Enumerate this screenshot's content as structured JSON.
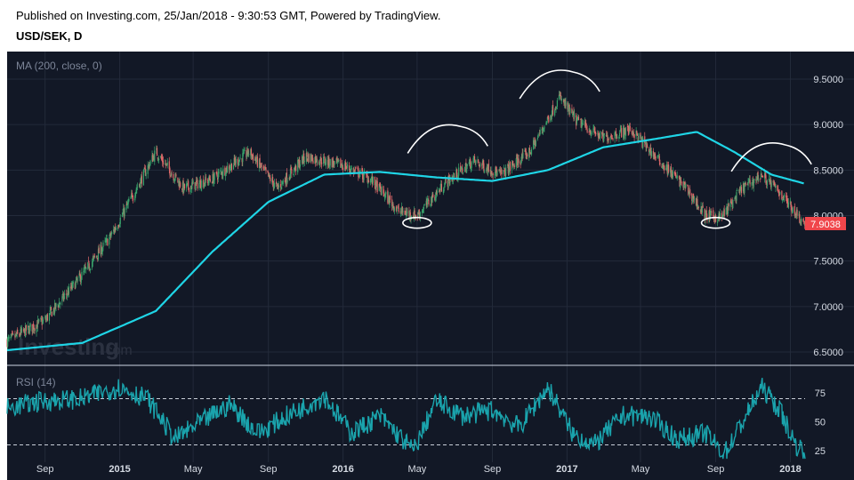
{
  "header": {
    "published": "Published on Investing.com, 25/Jan/2018 - 9:30:53 GMT, Powered by TradingView.",
    "symbol": "USD/SEK, D"
  },
  "watermark": {
    "brand": "Investing",
    "suffix": ".com"
  },
  "colors": {
    "background": "#121826",
    "grid": "#232a3a",
    "up_candle": "#39a36b",
    "down_candle": "#e06a6a",
    "ma_line": "#1fd5e6",
    "rsi_line": "#1aa3ac",
    "price_tag": "#f0464b",
    "annotation": "#ffffff"
  },
  "chart_data": [
    {
      "type": "candlestick",
      "title": "MA (200, close, 0)",
      "ylim": [
        6.4,
        9.7
      ],
      "y_ticks": [
        "9.5000",
        "9.0000",
        "8.5000",
        "8.0000",
        "7.5000",
        "7.0000",
        "6.5000"
      ],
      "x_ticks": [
        "Sep",
        "2015",
        "May",
        "Sep",
        "2016",
        "May",
        "Sep",
        "2017",
        "May",
        "Sep",
        "2018"
      ],
      "last_price": "7.9038",
      "close_path": {
        "x": [
          "2014-07-01",
          "2014-09-01",
          "2014-11-01",
          "2014-12-15",
          "2015-01-01",
          "2015-03-01",
          "2015-04-15",
          "2015-06-01",
          "2015-08-01",
          "2015-09-15",
          "2015-11-01",
          "2016-01-01",
          "2016-02-15",
          "2016-04-01",
          "2016-05-01",
          "2016-06-15",
          "2016-08-01",
          "2016-09-15",
          "2016-11-01",
          "2016-12-20",
          "2017-01-15",
          "2017-03-01",
          "2017-04-15",
          "2017-06-01",
          "2017-07-15",
          "2017-08-15",
          "2017-09-10",
          "2017-10-15",
          "2017-11-15",
          "2017-12-15",
          "2018-01-25"
        ],
        "y": [
          6.62,
          6.85,
          7.35,
          7.75,
          7.95,
          8.7,
          8.3,
          8.4,
          8.7,
          8.3,
          8.65,
          8.55,
          8.4,
          8.05,
          8.0,
          8.35,
          8.6,
          8.45,
          8.7,
          9.3,
          9.05,
          8.85,
          8.95,
          8.6,
          8.3,
          8.0,
          7.98,
          8.3,
          8.45,
          8.25,
          7.9038
        ]
      },
      "ma_200": {
        "x": [
          "2014-07-01",
          "2014-11-01",
          "2015-03-01",
          "2015-06-01",
          "2015-09-01",
          "2015-12-01",
          "2016-03-01",
          "2016-06-01",
          "2016-09-01",
          "2016-12-01",
          "2017-03-01",
          "2017-06-01",
          "2017-08-01",
          "2017-10-01",
          "2017-12-01",
          "2018-01-25"
        ],
        "y": [
          6.52,
          6.6,
          6.95,
          7.6,
          8.15,
          8.45,
          8.48,
          8.42,
          8.38,
          8.5,
          8.75,
          8.85,
          8.92,
          8.7,
          8.45,
          8.35
        ]
      }
    },
    {
      "type": "line",
      "title": "RSI (14)",
      "ylim": [
        18,
        92
      ],
      "y_ticks": [
        "75",
        "50",
        "25"
      ],
      "levels": [
        70,
        30
      ],
      "rsi": {
        "x": [
          "2014-07-01",
          "2014-09-01",
          "2014-11-01",
          "2015-01-01",
          "2015-02-15",
          "2015-04-01",
          "2015-05-15",
          "2015-07-01",
          "2015-08-15",
          "2015-10-01",
          "2015-12-01",
          "2016-01-15",
          "2016-03-01",
          "2016-04-25",
          "2016-06-01",
          "2016-07-15",
          "2016-09-01",
          "2016-10-15",
          "2016-12-01",
          "2017-01-10",
          "2017-02-15",
          "2017-04-01",
          "2017-05-15",
          "2017-07-01",
          "2017-08-15",
          "2017-09-15",
          "2017-10-15",
          "2017-11-15",
          "2017-12-15",
          "2018-01-10",
          "2018-01-25"
        ],
        "y": [
          62,
          68,
          70,
          80,
          70,
          35,
          50,
          65,
          40,
          55,
          72,
          40,
          55,
          25,
          68,
          55,
          60,
          45,
          80,
          40,
          30,
          55,
          55,
          35,
          40,
          22,
          50,
          80,
          60,
          30,
          25
        ]
      }
    }
  ],
  "annotations": [
    {
      "kind": "top-arc",
      "date": "2016-06-20",
      "value": 8.9
    },
    {
      "kind": "top-arc",
      "date": "2016-12-20",
      "value": 9.5
    },
    {
      "kind": "top-arc",
      "date": "2017-12-01",
      "value": 8.7
    },
    {
      "kind": "bottom-ellipse",
      "date": "2016-05-01",
      "value": 7.92
    },
    {
      "kind": "bottom-ellipse",
      "date": "2017-09-01",
      "value": 7.92
    }
  ]
}
